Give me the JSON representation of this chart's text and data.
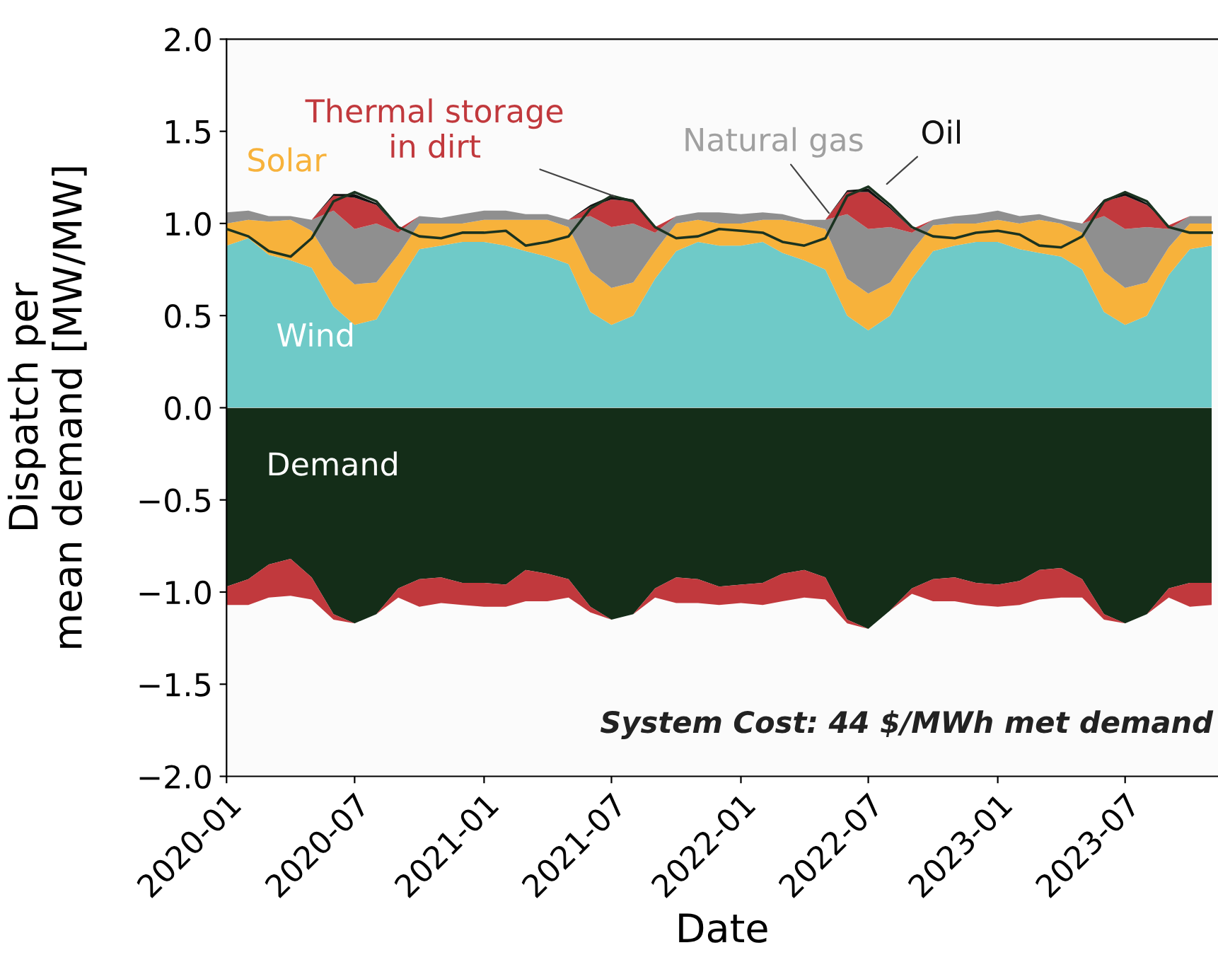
{
  "chart_data": [
    {
      "type": "area",
      "stacked": true,
      "ylabel": "Dispatch per\nmean demand [MW/MW]",
      "x": [
        "2020-01",
        "2020-02",
        "2020-03",
        "2020-04",
        "2020-05",
        "2020-06",
        "2020-07",
        "2020-08",
        "2020-09",
        "2020-10",
        "2020-11",
        "2020-12",
        "2021-01",
        "2021-02",
        "2021-03",
        "2021-04",
        "2021-05",
        "2021-06",
        "2021-07",
        "2021-08",
        "2021-09",
        "2021-10",
        "2021-11",
        "2021-12",
        "2022-01",
        "2022-02",
        "2022-03",
        "2022-04",
        "2022-05",
        "2022-06",
        "2022-07",
        "2022-08",
        "2022-09",
        "2022-10",
        "2022-11",
        "2022-12",
        "2023-01",
        "2023-02",
        "2023-03",
        "2023-04",
        "2023-05",
        "2023-06",
        "2023-07",
        "2023-08",
        "2023-09",
        "2023-10",
        "2023-11"
      ],
      "series": [
        {
          "name": "Wind",
          "color": "#6fcac8",
          "values": [
            0.88,
            0.92,
            0.83,
            0.8,
            0.76,
            0.55,
            0.45,
            0.48,
            0.68,
            0.86,
            0.88,
            0.9,
            0.9,
            0.88,
            0.85,
            0.82,
            0.78,
            0.52,
            0.45,
            0.5,
            0.7,
            0.85,
            0.9,
            0.88,
            0.88,
            0.9,
            0.84,
            0.8,
            0.75,
            0.5,
            0.42,
            0.5,
            0.7,
            0.85,
            0.88,
            0.9,
            0.9,
            0.86,
            0.84,
            0.82,
            0.75,
            0.52,
            0.45,
            0.5,
            0.72,
            0.86,
            0.88
          ]
        },
        {
          "name": "Solar",
          "color": "#f7b23b",
          "values": [
            0.12,
            0.1,
            0.18,
            0.22,
            0.2,
            0.22,
            0.22,
            0.2,
            0.15,
            0.14,
            0.12,
            0.1,
            0.12,
            0.14,
            0.17,
            0.2,
            0.2,
            0.22,
            0.2,
            0.18,
            0.15,
            0.15,
            0.12,
            0.12,
            0.12,
            0.12,
            0.18,
            0.2,
            0.22,
            0.2,
            0.2,
            0.18,
            0.15,
            0.14,
            0.12,
            0.1,
            0.12,
            0.14,
            0.18,
            0.18,
            0.2,
            0.22,
            0.2,
            0.18,
            0.15,
            0.14,
            0.12
          ]
        },
        {
          "name": "Natural gas",
          "color": "#8f8f8f",
          "values": [
            0.06,
            0.05,
            0.03,
            0.02,
            0.06,
            0.3,
            0.3,
            0.32,
            0.12,
            0.04,
            0.03,
            0.05,
            0.05,
            0.05,
            0.03,
            0.03,
            0.04,
            0.3,
            0.33,
            0.32,
            0.1,
            0.04,
            0.04,
            0.06,
            0.05,
            0.04,
            0.03,
            0.02,
            0.05,
            0.35,
            0.35,
            0.3,
            0.1,
            0.03,
            0.04,
            0.05,
            0.05,
            0.04,
            0.03,
            0.02,
            0.05,
            0.3,
            0.32,
            0.3,
            0.1,
            0.04,
            0.04
          ]
        },
        {
          "name": "Thermal storage\nin dirt",
          "color": "#c1393d",
          "values": [
            0,
            0,
            0,
            0,
            0,
            0.08,
            0.17,
            0.1,
            0.02,
            0,
            0,
            0,
            0,
            0,
            0,
            0,
            0,
            0.05,
            0.15,
            0.12,
            0.03,
            0,
            0,
            0,
            0,
            0,
            0,
            0,
            0,
            0.12,
            0.2,
            0.1,
            0.02,
            0,
            0,
            0,
            0,
            0,
            0,
            0,
            0,
            0.08,
            0.18,
            0.12,
            0.02,
            0,
            0
          ]
        },
        {
          "name": "Oil",
          "color": "#111111",
          "values": [
            0,
            0,
            0,
            0,
            0,
            0.01,
            0.02,
            0.01,
            0,
            0,
            0,
            0,
            0,
            0,
            0,
            0,
            0,
            0.01,
            0.02,
            0.01,
            0,
            0,
            0,
            0,
            0,
            0,
            0,
            0,
            0,
            0.01,
            0.02,
            0.01,
            0,
            0,
            0,
            0,
            0,
            0,
            0,
            0,
            0,
            0.01,
            0.02,
            0.01,
            0,
            0,
            0
          ]
        },
        {
          "type": "line",
          "color": "#1b3320",
          "values": [
            0.97,
            0.93,
            0.85,
            0.82,
            0.92,
            1.12,
            1.17,
            1.12,
            0.98,
            0.93,
            0.92,
            0.95,
            0.95,
            0.96,
            0.88,
            0.9,
            0.93,
            1.08,
            1.15,
            1.12,
            0.98,
            0.92,
            0.93,
            0.97,
            0.96,
            0.95,
            0.9,
            0.88,
            0.92,
            1.15,
            1.2,
            1.1,
            0.98,
            0.93,
            0.92,
            0.95,
            0.96,
            0.94,
            0.88,
            0.87,
            0.93,
            1.12,
            1.17,
            1.12,
            0.98,
            0.95,
            0.95
          ]
        }
      ],
      "xlim": [
        "2020-01-01",
        "2023-11-10"
      ],
      "ylim": [
        0.0,
        2.0
      ],
      "yticks": [
        {
          "value": 0.0,
          "label": "0.0"
        },
        {
          "value": 0.5,
          "label": "0.5"
        },
        {
          "value": 1.0,
          "label": "1.0"
        },
        {
          "value": 1.5,
          "label": "1.5"
        },
        {
          "value": 2.0,
          "label": "2.0"
        }
      ],
      "tick_labels": "y",
      "grid": false,
      "legend": false
    },
    {
      "type": "area",
      "stacked": true,
      "xlabel": "Date",
      "x": [
        "2020-01",
        "2020-02",
        "2020-03",
        "2020-04",
        "2020-05",
        "2020-06",
        "2020-07",
        "2020-08",
        "2020-09",
        "2020-10",
        "2020-11",
        "2020-12",
        "2021-01",
        "2021-02",
        "2021-03",
        "2021-04",
        "2021-05",
        "2021-06",
        "2021-07",
        "2021-08",
        "2021-09",
        "2021-10",
        "2021-11",
        "2021-12",
        "2022-01",
        "2022-02",
        "2022-03",
        "2022-04",
        "2022-05",
        "2022-06",
        "2022-07",
        "2022-08",
        "2022-09",
        "2022-10",
        "2022-11",
        "2022-12",
        "2023-01",
        "2023-02",
        "2023-03",
        "2023-04",
        "2023-05",
        "2023-06",
        "2023-07",
        "2023-08",
        "2023-09",
        "2023-10",
        "2023-11"
      ],
      "series": [
        {
          "name": "Demand",
          "color": "#142d18",
          "values": [
            -0.97,
            -0.93,
            -0.85,
            -0.82,
            -0.92,
            -1.12,
            -1.17,
            -1.12,
            -0.98,
            -0.93,
            -0.92,
            -0.95,
            -0.95,
            -0.96,
            -0.88,
            -0.9,
            -0.93,
            -1.08,
            -1.15,
            -1.12,
            -0.98,
            -0.92,
            -0.93,
            -0.97,
            -0.96,
            -0.95,
            -0.9,
            -0.88,
            -0.92,
            -1.15,
            -1.2,
            -1.1,
            -0.98,
            -0.93,
            -0.92,
            -0.95,
            -0.96,
            -0.94,
            -0.88,
            -0.87,
            -0.93,
            -1.12,
            -1.17,
            -1.12,
            -0.98,
            -0.95,
            -0.95
          ]
        },
        {
          "color": "#c1393d",
          "values": [
            -0.1,
            -0.14,
            -0.18,
            -0.2,
            -0.12,
            -0.03,
            0,
            0,
            -0.05,
            -0.15,
            -0.14,
            -0.12,
            -0.13,
            -0.12,
            -0.17,
            -0.15,
            -0.1,
            -0.03,
            0,
            0,
            -0.05,
            -0.14,
            -0.13,
            -0.1,
            -0.1,
            -0.12,
            -0.15,
            -0.15,
            -0.12,
            -0.02,
            0,
            0,
            -0.03,
            -0.12,
            -0.13,
            -0.12,
            -0.12,
            -0.13,
            -0.16,
            -0.16,
            -0.1,
            -0.03,
            0,
            0,
            -0.05,
            -0.13,
            -0.12
          ]
        }
      ],
      "xlim": [
        "2020-01-01",
        "2023-11-10"
      ],
      "xticks": [
        "2020-01",
        "2020-07",
        "2021-01",
        "2021-07",
        "2022-01",
        "2022-07",
        "2023-01",
        "2023-07"
      ],
      "ylim": [
        -2.0,
        0.0
      ],
      "yticks": [
        {
          "value": -2.0,
          "label": "−2.0"
        },
        {
          "value": -1.5,
          "label": "−1.5"
        },
        {
          "value": -1.0,
          "label": "−1.0"
        },
        {
          "value": -0.5,
          "label": "−0.5"
        }
      ],
      "annotations": [
        "System Cost: 44 $/MWh met demand"
      ],
      "grid": false,
      "legend": false
    }
  ]
}
